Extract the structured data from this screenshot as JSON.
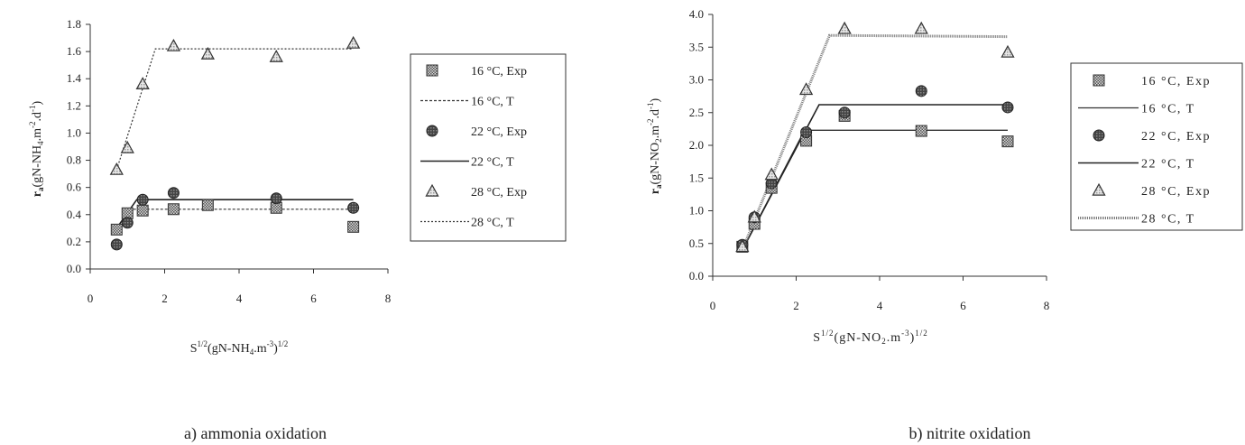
{
  "chart_data": [
    {
      "type": "scatter",
      "caption": "a) ammonia oxidation",
      "ylabel": "r",
      "ylabel_sub": "a",
      "ylabel_rest": "(gN-NH",
      "ylabel_rest_sub": "4",
      "ylabel_tail": ".m",
      "ylabel_tail_sup": "-2",
      "ylabel_tail2": ".d",
      "ylabel_tail2_sup": "-1",
      "ylabel_close": ")",
      "xlabel_pre": "S",
      "xlabel_pre_sup": "1/2",
      "xlabel_mid": "(gN-NH",
      "xlabel_mid_sub": "4",
      "xlabel_tail": ".m",
      "xlabel_tail_sup": "-3",
      "xlabel_close": ")",
      "xlabel_close_sup": "1/2",
      "xlim": [
        0,
        8
      ],
      "ylim": [
        0,
        1.8
      ],
      "xticks": [
        "0",
        "2",
        "4",
        "6",
        "8"
      ],
      "yticks": [
        "0.0",
        "0.2",
        "0.4",
        "0.6",
        "0.8",
        "1.0",
        "1.2",
        "1.4",
        "1.6",
        "1.8"
      ],
      "legend_position": "right",
      "series": [
        {
          "name": "16 °C, Exp",
          "kind": "points",
          "marker": "square",
          "x": [
            0.71,
            1.0,
            1.41,
            2.24,
            3.16,
            5.0,
            7.07
          ],
          "y": [
            0.29,
            0.41,
            0.43,
            0.44,
            0.47,
            0.45,
            0.31
          ]
        },
        {
          "name": "16 °C, T",
          "kind": "line",
          "style": "dashed",
          "x": [
            0.71,
            1.1,
            7.07
          ],
          "y": [
            0.29,
            0.44,
            0.44
          ]
        },
        {
          "name": "22 °C, Exp",
          "kind": "points",
          "marker": "circle",
          "x": [
            0.71,
            1.0,
            1.41,
            2.24,
            5.0,
            7.07
          ],
          "y": [
            0.18,
            0.34,
            0.51,
            0.56,
            0.52,
            0.45
          ]
        },
        {
          "name": "22 °C, T",
          "kind": "line",
          "style": "solid",
          "x": [
            0.71,
            1.25,
            7.07
          ],
          "y": [
            0.3,
            0.51,
            0.51
          ]
        },
        {
          "name": "28 °C, Exp",
          "kind": "points",
          "marker": "triangle",
          "x": [
            0.71,
            1.0,
            1.41,
            2.24,
            3.16,
            5.0,
            7.07
          ],
          "y": [
            0.73,
            0.89,
            1.36,
            1.64,
            1.58,
            1.56,
            1.66
          ]
        },
        {
          "name": "28 °C, T",
          "kind": "line",
          "style": "dotted",
          "x": [
            0.71,
            1.75,
            7.07
          ],
          "y": [
            0.73,
            1.62,
            1.62
          ]
        }
      ]
    },
    {
      "type": "scatter",
      "caption": "b) nitrite oxidation",
      "ylabel": "r",
      "ylabel_sub": "a",
      "ylabel_rest": "(gN-NO",
      "ylabel_rest_sub": "2",
      "ylabel_tail": ".m",
      "ylabel_tail_sup": "-2",
      "ylabel_tail2": ".d",
      "ylabel_tail2_sup": "-1",
      "ylabel_close": ")",
      "xlabel_pre": "S",
      "xlabel_pre_sup": "1/2",
      "xlabel_mid": "(gN-NO",
      "xlabel_mid_sub": "2",
      "xlabel_tail": ".m",
      "xlabel_tail_sup": "-3",
      "xlabel_close": ")",
      "xlabel_close_sup": "1/2",
      "xlim": [
        0,
        8
      ],
      "ylim": [
        0,
        4.0
      ],
      "xticks": [
        "0",
        "2",
        "4",
        "6",
        "8"
      ],
      "yticks": [
        "0.0",
        "0.5",
        "1.0",
        "1.5",
        "2.0",
        "2.5",
        "3.0",
        "3.5",
        "4.0"
      ],
      "legend_position": "right",
      "series": [
        {
          "name": "16 °C, Exp",
          "kind": "points",
          "marker": "square",
          "x": [
            0.71,
            1.0,
            1.41,
            2.24,
            3.16,
            5.0,
            7.07
          ],
          "y": [
            0.45,
            0.8,
            1.35,
            2.07,
            2.45,
            2.22,
            2.06
          ]
        },
        {
          "name": "16 °C, T",
          "kind": "line",
          "style": "solid-thin",
          "x": [
            0.71,
            2.2,
            7.07
          ],
          "y": [
            0.4,
            2.23,
            2.23
          ]
        },
        {
          "name": "22 °C, Exp",
          "kind": "points",
          "marker": "circle",
          "x": [
            0.71,
            1.0,
            1.41,
            2.24,
            3.16,
            5.0,
            7.07
          ],
          "y": [
            0.48,
            0.9,
            1.42,
            2.2,
            2.5,
            2.83,
            2.58
          ]
        },
        {
          "name": "22 °C, T",
          "kind": "line",
          "style": "solid",
          "x": [
            0.71,
            2.55,
            7.07
          ],
          "y": [
            0.4,
            2.62,
            2.62
          ]
        },
        {
          "name": "28 °C, Exp",
          "kind": "points",
          "marker": "triangle",
          "x": [
            0.71,
            1.0,
            1.41,
            2.24,
            3.16,
            5.0,
            7.07
          ],
          "y": [
            0.45,
            0.9,
            1.55,
            2.85,
            3.78,
            3.78,
            3.42
          ]
        },
        {
          "name": "28 °C, T",
          "kind": "line",
          "style": "hatched",
          "x": [
            0.71,
            2.8,
            7.07
          ],
          "y": [
            0.4,
            3.68,
            3.66
          ]
        }
      ]
    }
  ]
}
